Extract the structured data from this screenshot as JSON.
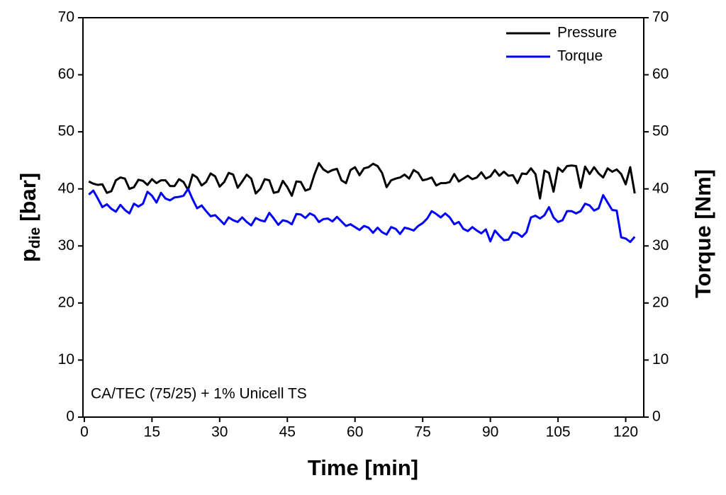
{
  "chart_data": {
    "type": "line",
    "xlabel": "Time [min]",
    "ylabel": "p",
    "ylabel_sub": "die",
    "ylabel_unit": "[bar]",
    "y2label": "Torque [Nm]",
    "annotation": "CA/TEC (75/25) + 1% Unicell TS",
    "legend": "upper right",
    "xlim": [
      -0.3,
      124
    ],
    "xticks": [
      0,
      15,
      30,
      45,
      60,
      75,
      90,
      105,
      120
    ],
    "ylim": [
      0,
      70
    ],
    "yticks": [
      0,
      10,
      20,
      30,
      40,
      50,
      60,
      70
    ],
    "y2lim": [
      0,
      70
    ],
    "y2ticks": [
      0,
      10,
      20,
      30,
      40,
      50,
      60,
      70
    ],
    "x": [
      1,
      2,
      3,
      4,
      5,
      6,
      7,
      8,
      9,
      10,
      11,
      12,
      13,
      14,
      15,
      16,
      17,
      18,
      19,
      20,
      21,
      22,
      23,
      24,
      25,
      26,
      27,
      28,
      29,
      30,
      31,
      32,
      33,
      34,
      35,
      36,
      37,
      38,
      39,
      40,
      41,
      42,
      43,
      44,
      45,
      46,
      47,
      48,
      49,
      50,
      51,
      52,
      53,
      54,
      55,
      56,
      57,
      58,
      59,
      60,
      61,
      62,
      63,
      64,
      65,
      66,
      67,
      68,
      69,
      70,
      71,
      72,
      73,
      74,
      75,
      76,
      77,
      78,
      79,
      80,
      81,
      82,
      83,
      84,
      85,
      86,
      87,
      88,
      89,
      90,
      91,
      92,
      93,
      94,
      95,
      96,
      97,
      98,
      99,
      100,
      101,
      102,
      103,
      104,
      105,
      106,
      107,
      108,
      109,
      110,
      111,
      112,
      113,
      114,
      115,
      116,
      117,
      118,
      119,
      120,
      121,
      122
    ],
    "series": [
      {
        "name": "Pressure",
        "color": "#000000",
        "values": [
          41.3,
          40.9,
          40.7,
          40.8,
          39.3,
          39.6,
          41.5,
          42,
          41.8,
          40,
          40.3,
          41.6,
          41.4,
          40.7,
          41.7,
          41,
          41.5,
          41.5,
          40.5,
          40.5,
          41.7,
          41.2,
          39.8,
          42.5,
          42,
          40.6,
          41.2,
          42.7,
          42.2,
          40.4,
          41.2,
          42.8,
          42.5,
          40.2,
          41.3,
          42.5,
          41.8,
          39.2,
          40,
          41.7,
          41.5,
          39.3,
          39.5,
          41.4,
          40.3,
          38.8,
          41.3,
          41.2,
          39.7,
          40,
          42.5,
          44.5,
          43.4,
          42.9,
          43.3,
          43.5,
          41.5,
          41,
          43.3,
          43.8,
          42.4,
          43.6,
          43.8,
          44.4,
          44,
          42.8,
          40.3,
          41.5,
          41.8,
          42,
          42.5,
          41.8,
          43.3,
          42.8,
          41.5,
          41.7,
          42,
          40.6,
          41,
          41,
          41.2,
          42.6,
          41.3,
          41.8,
          42.3,
          41.7,
          42,
          42.9,
          41.8,
          42.2,
          43.3,
          42.3,
          43,
          42.3,
          42.4,
          41,
          42.7,
          42.6,
          43.6,
          42.6,
          38.3,
          43.2,
          42.8,
          39.5,
          43.7,
          43,
          44,
          44.1,
          44,
          40.2,
          43.9,
          42.6,
          43.8,
          42.7,
          42,
          43.6,
          43,
          43.4,
          42.6,
          40.8,
          43.8,
          39.2
        ]
      },
      {
        "name": "Torque",
        "color": "#0000ff",
        "axis": "y2",
        "values": [
          39,
          39.7,
          38.3,
          36.8,
          37.3,
          36.5,
          36,
          37.2,
          36.3,
          35.7,
          37.4,
          36.9,
          37.4,
          39.5,
          38.8,
          37.6,
          39.3,
          38.3,
          38,
          38.5,
          38.6,
          38.8,
          40,
          38.2,
          36.6,
          37.1,
          36.1,
          35.2,
          35.4,
          34.6,
          33.8,
          35,
          34.5,
          34.2,
          35,
          34.2,
          33.6,
          34.9,
          34.5,
          34.3,
          35.8,
          34.8,
          33.7,
          34.5,
          34.3,
          33.8,
          35.6,
          35.5,
          34.9,
          35.7,
          35.3,
          34.2,
          34.7,
          34.8,
          34.3,
          35.1,
          34.3,
          33.5,
          33.8,
          33.3,
          32.8,
          33.5,
          33.2,
          32.3,
          33.2,
          32.4,
          32,
          33.3,
          33,
          32.1,
          33.2,
          33,
          32.7,
          33.5,
          34,
          34.8,
          36.1,
          35.6,
          35,
          35.7,
          35,
          33.8,
          34.2,
          33,
          32.6,
          33.3,
          32.7,
          32.2,
          32.9,
          30.8,
          32.7,
          31.8,
          31,
          31.1,
          32.4,
          32.2,
          31.6,
          32.4,
          35,
          35.3,
          34.8,
          35.4,
          36.8,
          35,
          34.2,
          34.5,
          36.1,
          36.1,
          35.7,
          36.1,
          37.4,
          37.1,
          36.2,
          36.6,
          38.9,
          37.6,
          36.3,
          36.2,
          31.5,
          31.3,
          30.7,
          31.6
        ]
      }
    ]
  }
}
